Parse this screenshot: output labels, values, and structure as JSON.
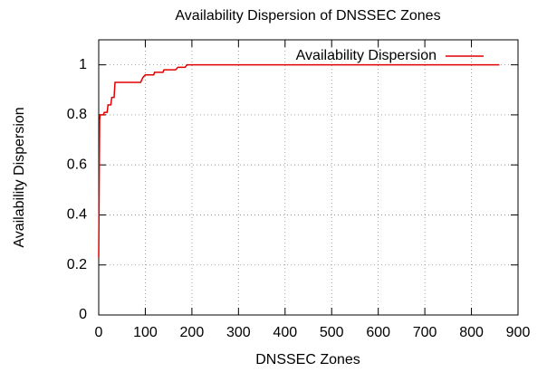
{
  "chart_data": {
    "type": "line",
    "title": "Availability Dispersion of DNSSEC Zones",
    "xlabel": "DNSSEC Zones",
    "ylabel": "Availability Dispersion",
    "x": [
      0,
      2,
      3,
      10,
      12,
      18,
      20,
      26,
      28,
      33,
      35,
      90,
      95,
      100,
      118,
      120,
      138,
      140,
      165,
      170,
      185,
      190,
      860
    ],
    "series": [
      {
        "name": "Availability Dispersion",
        "color": "#e00000",
        "values": [
          0.23,
          0.78,
          0.8,
          0.8,
          0.81,
          0.81,
          0.84,
          0.84,
          0.87,
          0.87,
          0.93,
          0.93,
          0.95,
          0.96,
          0.96,
          0.97,
          0.97,
          0.98,
          0.98,
          0.99,
          0.99,
          1.0,
          1.0
        ]
      }
    ],
    "xlim": [
      0,
      900
    ],
    "xticks": [
      0,
      100,
      200,
      300,
      400,
      500,
      600,
      700,
      800,
      900
    ],
    "ylim": [
      0,
      1.1
    ],
    "yticks": [
      0,
      0.2,
      0.4,
      0.6,
      0.8,
      1
    ],
    "grid": true,
    "legend": "top-right"
  }
}
